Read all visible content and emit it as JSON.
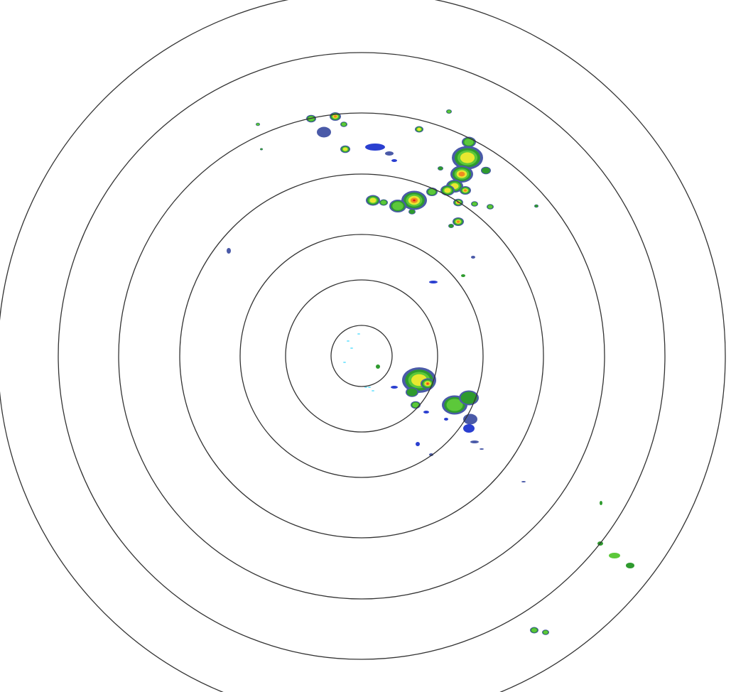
{
  "display": {
    "background_color": "#ffffff",
    "ring_color": "#333333",
    "ring_count": 7
  },
  "reflectivity_palette": {
    "very_light": "#7fe6ff",
    "light": "#2a3fd0",
    "light_dim": "#4a5aa8",
    "moderate": "#2e9a2e",
    "moderate_bright": "#5cc83a",
    "heavy": "#e8e830",
    "very_heavy": "#f08a20",
    "intense": "#e01818"
  }
}
